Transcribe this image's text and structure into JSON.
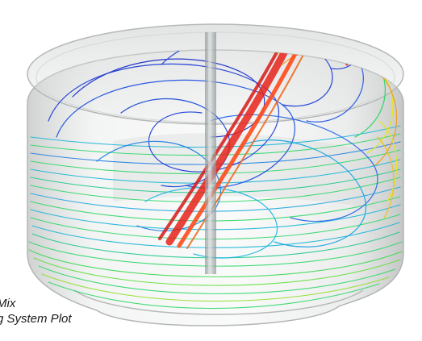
{
  "image": {
    "subject": "CFD streamline visualization inside a translucent cylindrical mixing tank",
    "colors": {
      "background": "#ffffff",
      "tank_shell": "#c9cbcb",
      "tank_rim": "#b6b8b8",
      "shaft": "#9fa6a6",
      "stream_low": "#1f3fd8",
      "stream_low_mid": "#19b6d6",
      "stream_mid": "#2fd86a",
      "stream_high_mid": "#e7e51f",
      "stream_high": "#e8231a"
    }
  },
  "caption": {
    "line1": "Mix",
    "line2": "g System Plot"
  }
}
